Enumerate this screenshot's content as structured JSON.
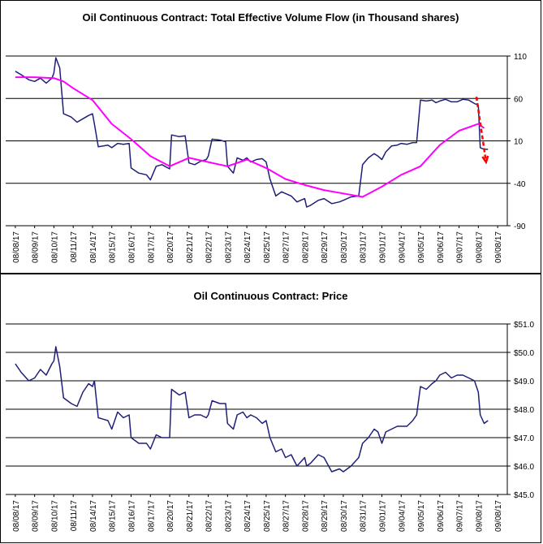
{
  "colors": {
    "volume": "#1f1f7a",
    "average": "#ff00ff",
    "arrow": "#ff0000",
    "price": "#1f1f7a",
    "grid": "#000000"
  },
  "chart_data": [
    {
      "type": "line",
      "title": "Oil Continuous Contract: Total Effective Volume Flow (in Thousand shares)",
      "xlabel": "",
      "ylabel": "",
      "ylim": [
        -90,
        110
      ],
      "yticks": [
        "110",
        "60",
        "10",
        "-40",
        "-90"
      ],
      "ytick_values": [
        110,
        60,
        10,
        -40,
        -90
      ],
      "gridlines": [
        110,
        60,
        10,
        -40
      ],
      "categories": [
        "08/08/17",
        "08/09/17",
        "08/10/17",
        "08/11/17",
        "08/14/17",
        "08/15/17",
        "08/16/17",
        "08/17/17",
        "08/20/17",
        "08/21/17",
        "08/22/17",
        "08/23/17",
        "08/24/17",
        "08/25/17",
        "08/27/17",
        "08/28/17",
        "08/29/17",
        "08/30/17",
        "08/31/17",
        "09/01/17",
        "09/04/17",
        "09/05/17",
        "09/06/17",
        "09/07/17",
        "09/08/17",
        "09/08/17"
      ],
      "series": [
        {
          "style": "volume",
          "points": [
            [
              0,
              92
            ],
            [
              0.3,
              88
            ],
            [
              0.7,
              82
            ],
            [
              1,
              80
            ],
            [
              1.3,
              84
            ],
            [
              1.6,
              78
            ],
            [
              1.9,
              84
            ],
            [
              2,
              90
            ],
            [
              2.1,
              108
            ],
            [
              2.3,
              96
            ],
            [
              2.5,
              42
            ],
            [
              2.9,
              38
            ],
            [
              3.2,
              32
            ],
            [
              3.5,
              36
            ],
            [
              3.8,
              40
            ],
            [
              4,
              42
            ],
            [
              4.1,
              30
            ],
            [
              4.3,
              3
            ],
            [
              4.8,
              5
            ],
            [
              5,
              2
            ],
            [
              5.3,
              7
            ],
            [
              5.6,
              6
            ],
            [
              5.9,
              7
            ],
            [
              6,
              -22
            ],
            [
              6.4,
              -28
            ],
            [
              6.8,
              -30
            ],
            [
              7,
              -36
            ],
            [
              7.3,
              -20
            ],
            [
              7.6,
              -18
            ],
            [
              8,
              -23
            ],
            [
              8.1,
              17
            ],
            [
              8.5,
              15
            ],
            [
              8.8,
              16
            ],
            [
              9,
              -16
            ],
            [
              9.3,
              -18
            ],
            [
              9.6,
              -14
            ],
            [
              9.9,
              -12
            ],
            [
              10,
              -8
            ],
            [
              10.2,
              12
            ],
            [
              10.6,
              11
            ],
            [
              10.9,
              9
            ],
            [
              11,
              -20
            ],
            [
              11.3,
              -28
            ],
            [
              11.5,
              -10
            ],
            [
              11.8,
              -13
            ],
            [
              12,
              -10
            ],
            [
              12.2,
              -15
            ],
            [
              12.5,
              -12
            ],
            [
              12.8,
              -11
            ],
            [
              13,
              -15
            ],
            [
              13.2,
              -35
            ],
            [
              13.5,
              -55
            ],
            [
              13.8,
              -50
            ],
            [
              14,
              -52
            ],
            [
              14.3,
              -55
            ],
            [
              14.6,
              -62
            ],
            [
              15,
              -58
            ],
            [
              15.1,
              -68
            ],
            [
              15.3,
              -66
            ],
            [
              15.7,
              -60
            ],
            [
              16,
              -58
            ],
            [
              16.4,
              -64
            ],
            [
              16.8,
              -62
            ],
            [
              17,
              -60
            ],
            [
              17.4,
              -56
            ],
            [
              17.8,
              -55
            ],
            [
              18,
              -18
            ],
            [
              18.3,
              -10
            ],
            [
              18.6,
              -5
            ],
            [
              18.8,
              -8
            ],
            [
              19,
              -12
            ],
            [
              19.2,
              -3
            ],
            [
              19.5,
              4
            ],
            [
              19.8,
              5
            ],
            [
              20,
              7
            ],
            [
              20.3,
              6
            ],
            [
              20.6,
              8
            ],
            [
              20.8,
              8
            ],
            [
              21,
              58
            ],
            [
              21.3,
              57
            ],
            [
              21.6,
              58
            ],
            [
              21.8,
              55
            ],
            [
              22,
              57
            ],
            [
              22.3,
              59
            ],
            [
              22.6,
              56
            ],
            [
              22.9,
              56
            ],
            [
              23.2,
              59
            ],
            [
              23.5,
              58
            ],
            [
              23.8,
              54
            ],
            [
              24,
              52
            ],
            [
              24.1,
              2
            ],
            [
              24.3,
              0
            ],
            [
              24.5,
              0
            ]
          ]
        },
        {
          "style": "average",
          "points": [
            [
              0,
              85
            ],
            [
              1,
              85
            ],
            [
              2,
              84
            ],
            [
              2.5,
              80
            ],
            [
              3,
              72
            ],
            [
              4,
              58
            ],
            [
              5,
              30
            ],
            [
              6,
              12
            ],
            [
              7,
              -8
            ],
            [
              8,
              -20
            ],
            [
              9,
              -10
            ],
            [
              10,
              -15
            ],
            [
              11,
              -20
            ],
            [
              12,
              -12
            ],
            [
              13,
              -22
            ],
            [
              14,
              -35
            ],
            [
              15,
              -42
            ],
            [
              16,
              -48
            ],
            [
              17,
              -52
            ],
            [
              18,
              -56
            ],
            [
              19,
              -44
            ],
            [
              20,
              -30
            ],
            [
              21,
              -20
            ],
            [
              22,
              5
            ],
            [
              23,
              22
            ],
            [
              24,
              30
            ],
            [
              24.3,
              25
            ]
          ]
        }
      ],
      "annotations": [
        {
          "type": "arrow",
          "style": "arrow",
          "from": [
            23.9,
            62
          ],
          "to": [
            24.4,
            -15
          ]
        }
      ]
    },
    {
      "type": "line",
      "title": "Oil Continuous Contract: Price",
      "xlabel": "",
      "ylabel": "",
      "ylim": [
        45.0,
        51.0
      ],
      "yticks": [
        "$51.0",
        "$50.0",
        "$49.0",
        "$48.0",
        "$47.0",
        "$46.0",
        "$45.0"
      ],
      "ytick_values": [
        51,
        50,
        49,
        48,
        47,
        46,
        45
      ],
      "gridlines": [
        51,
        50,
        49,
        48,
        47,
        46
      ],
      "categories": [
        "08/08/17",
        "08/09/17",
        "08/10/17",
        "08/11/17",
        "08/14/17",
        "08/15/17",
        "08/16/17",
        "08/17/17",
        "08/20/17",
        "08/21/17",
        "08/22/17",
        "08/23/17",
        "08/24/17",
        "08/25/17",
        "08/27/17",
        "08/28/17",
        "08/29/17",
        "08/30/17",
        "08/31/17",
        "09/01/17",
        "09/04/17",
        "09/05/17",
        "09/06/17",
        "09/07/17",
        "09/08/17",
        "09/08/17"
      ],
      "series": [
        {
          "style": "price",
          "points": [
            [
              0,
              49.6
            ],
            [
              0.3,
              49.3
            ],
            [
              0.7,
              49.0
            ],
            [
              1,
              49.1
            ],
            [
              1.3,
              49.4
            ],
            [
              1.6,
              49.2
            ],
            [
              1.9,
              49.6
            ],
            [
              2,
              49.7
            ],
            [
              2.1,
              50.2
            ],
            [
              2.3,
              49.5
            ],
            [
              2.5,
              48.4
            ],
            [
              2.9,
              48.2
            ],
            [
              3.2,
              48.1
            ],
            [
              3.5,
              48.6
            ],
            [
              3.8,
              48.9
            ],
            [
              4,
              48.8
            ],
            [
              4.1,
              49.0
            ],
            [
              4.3,
              47.7
            ],
            [
              4.8,
              47.6
            ],
            [
              5,
              47.3
            ],
            [
              5.3,
              47.9
            ],
            [
              5.6,
              47.7
            ],
            [
              5.9,
              47.8
            ],
            [
              6,
              47.0
            ],
            [
              6.4,
              46.8
            ],
            [
              6.8,
              46.8
            ],
            [
              7,
              46.6
            ],
            [
              7.3,
              47.1
            ],
            [
              7.6,
              47.0
            ],
            [
              8,
              47.0
            ],
            [
              8.1,
              48.7
            ],
            [
              8.5,
              48.5
            ],
            [
              8.8,
              48.6
            ],
            [
              9,
              47.7
            ],
            [
              9.3,
              47.8
            ],
            [
              9.6,
              47.8
            ],
            [
              9.9,
              47.7
            ],
            [
              10,
              47.8
            ],
            [
              10.2,
              48.3
            ],
            [
              10.6,
              48.2
            ],
            [
              10.9,
              48.2
            ],
            [
              11,
              47.5
            ],
            [
              11.3,
              47.3
            ],
            [
              11.5,
              47.8
            ],
            [
              11.8,
              47.9
            ],
            [
              12,
              47.7
            ],
            [
              12.2,
              47.8
            ],
            [
              12.5,
              47.7
            ],
            [
              12.8,
              47.5
            ],
            [
              13,
              47.6
            ],
            [
              13.2,
              47.0
            ],
            [
              13.5,
              46.5
            ],
            [
              13.8,
              46.6
            ],
            [
              14,
              46.3
            ],
            [
              14.3,
              46.4
            ],
            [
              14.6,
              46.0
            ],
            [
              15,
              46.3
            ],
            [
              15.1,
              46.0
            ],
            [
              15.3,
              46.1
            ],
            [
              15.7,
              46.4
            ],
            [
              16,
              46.3
            ],
            [
              16.4,
              45.8
            ],
            [
              16.8,
              45.9
            ],
            [
              17,
              45.8
            ],
            [
              17.4,
              46.0
            ],
            [
              17.8,
              46.3
            ],
            [
              18,
              46.8
            ],
            [
              18.3,
              47.0
            ],
            [
              18.6,
              47.3
            ],
            [
              18.8,
              47.2
            ],
            [
              19,
              46.8
            ],
            [
              19.2,
              47.2
            ],
            [
              19.5,
              47.3
            ],
            [
              19.8,
              47.4
            ],
            [
              20,
              47.4
            ],
            [
              20.3,
              47.4
            ],
            [
              20.6,
              47.6
            ],
            [
              20.8,
              47.8
            ],
            [
              21,
              48.8
            ],
            [
              21.3,
              48.7
            ],
            [
              21.6,
              48.9
            ],
            [
              21.8,
              49.0
            ],
            [
              22,
              49.2
            ],
            [
              22.3,
              49.3
            ],
            [
              22.6,
              49.1
            ],
            [
              22.9,
              49.2
            ],
            [
              23.2,
              49.2
            ],
            [
              23.5,
              49.1
            ],
            [
              23.8,
              49.0
            ],
            [
              24,
              48.6
            ],
            [
              24.1,
              47.8
            ],
            [
              24.3,
              47.5
            ],
            [
              24.5,
              47.6
            ]
          ]
        }
      ]
    }
  ]
}
